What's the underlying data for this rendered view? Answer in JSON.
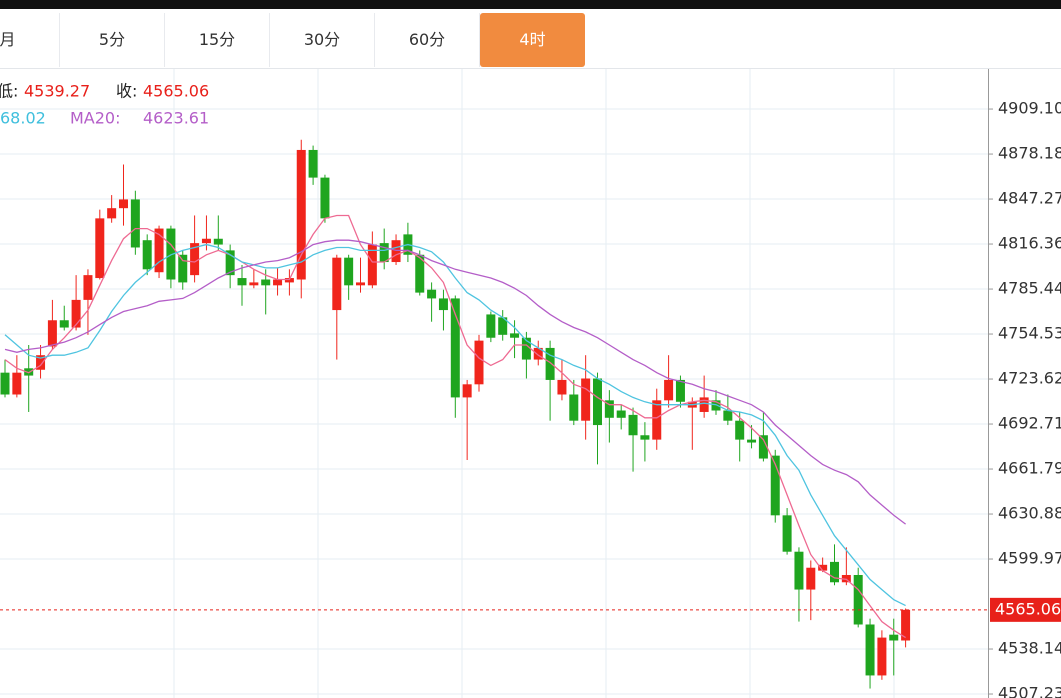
{
  "chart_data": {
    "type": "candlestick",
    "tabs": [
      "月",
      "5分",
      "15分",
      "30分",
      "60分",
      "4时"
    ],
    "active_tab": 5,
    "info": {
      "low_label": "低:",
      "low": 4539.27,
      "close_label": "收:",
      "close": 4565.06,
      "ma10_text": "68.02",
      "ma20_label": "MA20:",
      "ma20": 4623.61
    },
    "up_color": "#f0251c",
    "down_color": "#1fa51f",
    "open": [
      4728,
      4713,
      4731,
      4730,
      4746,
      4764,
      4759,
      4778,
      4793,
      4834,
      4841,
      4847,
      4819,
      4797,
      4827,
      4809,
      4795,
      4817,
      4820,
      4812,
      4793,
      4788,
      4792,
      4788,
      4790,
      4792,
      4881,
      4862,
      4771,
      4807,
      4788,
      4788,
      4817,
      4804,
      4823,
      4809,
      4785,
      4779,
      4779,
      4711,
      4720,
      4768,
      4766,
      4755,
      4752,
      4737,
      4745,
      4713,
      4713,
      4695,
      4724,
      4709,
      4702,
      4699,
      4685,
      4682,
      4709,
      4723,
      4704,
      4701,
      4709,
      4702,
      4695,
      4682,
      4685,
      4671,
      4630,
      4605,
      4579,
      4592,
      4598,
      4584,
      4589,
      4555,
      4520,
      4548,
      4544
    ],
    "high": [
      4737,
      4740,
      4747,
      4747,
      4778,
      4774,
      4795,
      4799,
      4840,
      4850,
      4871,
      4853,
      4823,
      4829,
      4829,
      4812,
      4836,
      4836,
      4836,
      4816,
      4802,
      4799,
      4799,
      4800,
      4799,
      4888,
      4884,
      4864,
      4809,
      4809,
      4807,
      4825,
      4827,
      4823,
      4831,
      4812,
      4790,
      4785,
      4781,
      4723,
      4754,
      4770,
      4771,
      4764,
      4756,
      4750,
      4750,
      4737,
      4723,
      4740,
      4728,
      4716,
      4706,
      4704,
      4694,
      4717,
      4740,
      4726,
      4711,
      4726,
      4716,
      4713,
      4701,
      4692,
      4701,
      4675,
      4635,
      4608,
      4599,
      4601,
      4610,
      4608,
      4594,
      4559,
      4551,
      4559,
      4566
    ],
    "low": [
      4711,
      4711,
      4701,
      4724,
      4744,
      4757,
      4757,
      4754,
      4792,
      4831,
      4829,
      4809,
      4795,
      4793,
      4786,
      4785,
      4790,
      4812,
      4812,
      4786,
      4774,
      4786,
      4768,
      4781,
      4781,
      4779,
      4857,
      4831,
      4737,
      4778,
      4783,
      4786,
      4799,
      4802,
      4804,
      4781,
      4763,
      4757,
      4697,
      4668,
      4715,
      4749,
      4750,
      4738,
      4724,
      4733,
      4695,
      4709,
      4692,
      4682,
      4665,
      4680,
      4689,
      4660,
      4667,
      4675,
      4704,
      4704,
      4675,
      4697,
      4699,
      4692,
      4667,
      4676,
      4667,
      4625,
      4603,
      4557,
      4558,
      4591,
      4582,
      4582,
      4553,
      4511,
      4517,
      4520,
      4539.27
    ],
    "close": [
      4713,
      4728,
      4726,
      4740,
      4764,
      4759,
      4778,
      4795,
      4834,
      4841,
      4847,
      4814,
      4799,
      4827,
      4792,
      4790,
      4817,
      4820,
      4816,
      4795,
      4788,
      4790,
      4788,
      4792,
      4793,
      4881,
      4862,
      4834,
      4807,
      4788,
      4790,
      4816,
      4804,
      4819,
      4809,
      4783,
      4779,
      4771,
      4711,
      4720,
      4750,
      4752,
      4754,
      4752,
      4737,
      4745,
      4723,
      4723,
      4695,
      4724,
      4692,
      4697,
      4697,
      4685,
      4682,
      4709,
      4723,
      4708,
      4708,
      4711,
      4702,
      4695,
      4682,
      4680,
      4669,
      4630,
      4605,
      4579,
      4594,
      4596,
      4584,
      4589,
      4555,
      4520,
      4546,
      4544,
      4565.06
    ],
    "ma": [
      {
        "color": "#ee6a92",
        "values": [
          4737,
          4731,
          4728,
          4733,
          4744,
          4752,
          4761,
          4771,
          4788,
          4805,
          4820,
          4827,
          4827,
          4823,
          4816,
          4805,
          4804,
          4809,
          4812,
          4809,
          4804,
          4799,
          4795,
          4792,
          4792,
          4809,
          4823,
          4834,
          4836,
          4836,
          4816,
          4804,
          4804,
          4809,
          4812,
          4807,
          4800,
          4790,
          4768,
          4747,
          4738,
          4733,
          4737,
          4747,
          4747,
          4740,
          4735,
          4728,
          4720,
          4717,
          4711,
          4706,
          4706,
          4702,
          4697,
          4697,
          4702,
          4706,
          4708,
          4709,
          4708,
          4704,
          4697,
          4690,
          4682,
          4665,
          4644,
          4623,
          4603,
          4592,
          4587,
          4586,
          4579,
          4568,
          4557,
          4551,
          4546
        ]
      },
      {
        "color": "#4fc4e0",
        "values": [
          4754,
          4747,
          4740,
          4738,
          4740,
          4740,
          4742,
          4745,
          4757,
          4770,
          4781,
          4790,
          4797,
          4804,
          4809,
          4812,
          4814,
          4816,
          4814,
          4809,
          4804,
          4802,
          4800,
          4800,
          4802,
          4804,
          4809,
          4812,
          4814,
          4814,
          4812,
          4812,
          4812,
          4814,
          4816,
          4814,
          4811,
          4804,
          4793,
          4783,
          4778,
          4771,
          4766,
          4759,
          4750,
          4745,
          4740,
          4737,
          4733,
          4730,
          4724,
          4720,
          4715,
          4711,
          4708,
          4706,
          4706,
          4706,
          4706,
          4707,
          4706,
          4702,
          4701,
          4699,
          4695,
          4685,
          4671,
          4661,
          4644,
          4630,
          4616,
          4606,
          4596,
          4586,
          4579,
          4572,
          4568
        ]
      },
      {
        "color": "#b45ec8",
        "values": [
          4744,
          4742,
          4744,
          4745,
          4747,
          4749,
          4752,
          4756,
          4761,
          4766,
          4770,
          4772,
          4774,
          4777,
          4778,
          4779,
          4783,
          4788,
          4793,
          4797,
          4800,
          4802,
          4804,
          4805,
          4807,
          4811,
          4816,
          4818,
          4819,
          4819,
          4818,
          4816,
          4814,
          4812,
          4812,
          4809,
          4805,
          4802,
          4799,
          4797,
          4795,
          4793,
          4790,
          4786,
          4781,
          4774,
          4768,
          4763,
          4759,
          4756,
          4752,
          4747,
          4742,
          4737,
          4733,
          4728,
          4724,
          4722,
          4720,
          4717,
          4715,
          4712,
          4709,
          4706,
          4701,
          4692,
          4685,
          4678,
          4671,
          4665,
          4661,
          4658,
          4653,
          4644,
          4637,
          4630,
          4624
        ]
      }
    ],
    "ylim": [
      4504.5,
      4937.3
    ],
    "yticks": [
      {
        "value": 4909.1,
        "label": "4909.10"
      },
      4878.18,
      4847.27,
      4816.36,
      4785.44,
      4754.53,
      4723.62,
      4692.71,
      4661.79,
      4630.88,
      4599.97,
      4538.14,
      4507.23
    ],
    "last_price": 4565.06,
    "grid": true
  }
}
